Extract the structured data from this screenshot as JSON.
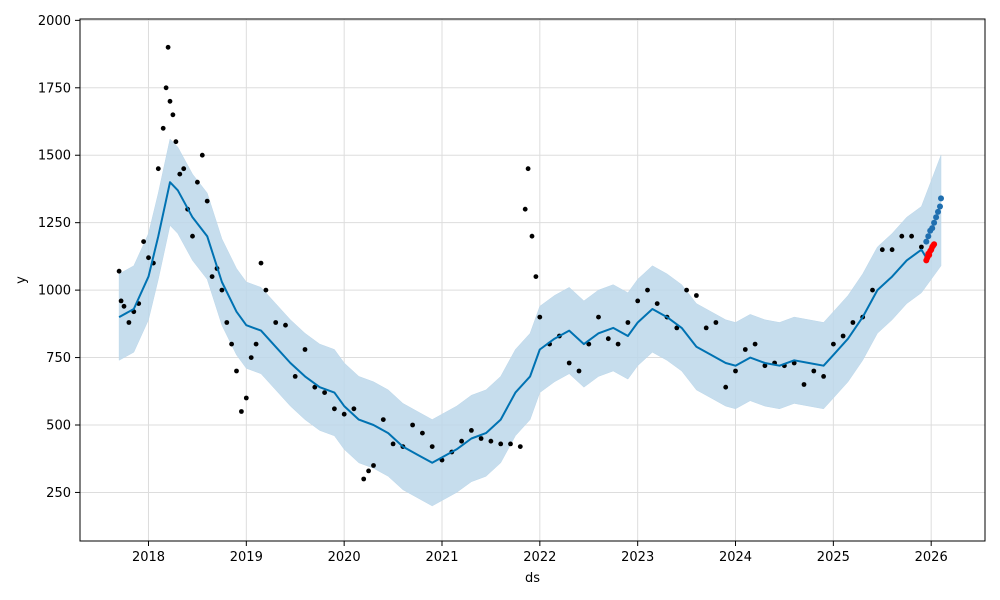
{
  "chart_data": {
    "type": "line",
    "title": "",
    "xlabel": "ds",
    "ylabel": "y",
    "xlim": [
      2017.3,
      2026.55
    ],
    "ylim": [
      70,
      2005
    ],
    "grid": true,
    "legend": "none",
    "x_ticks": [
      2018,
      2019,
      2020,
      2021,
      2022,
      2023,
      2024,
      2025,
      2026
    ],
    "x_tick_labels": [
      "2018",
      "2019",
      "2020",
      "2021",
      "2022",
      "2023",
      "2024",
      "2025",
      "2026"
    ],
    "y_ticks": [
      250,
      500,
      750,
      1000,
      1250,
      1500,
      1750,
      2000
    ],
    "y_tick_labels": [
      "250",
      "500",
      "750",
      "1000",
      "1250",
      "1500",
      "1750",
      "2000"
    ],
    "colors": {
      "forecast_line": "#0072B2",
      "uncertainty_band": "#bcd7ea",
      "observed_points": "#000000",
      "future_forecast_points": "#1f6fb0",
      "red_points": "#ff0000",
      "grid": "#dddddd"
    },
    "series": [
      {
        "kind": "forecast_yhat",
        "x": [
          2017.7,
          2017.85,
          2018.0,
          2018.1,
          2018.22,
          2018.3,
          2018.45,
          2018.6,
          2018.75,
          2018.9,
          2019.0,
          2019.15,
          2019.3,
          2019.45,
          2019.6,
          2019.75,
          2019.9,
          2020.0,
          2020.15,
          2020.3,
          2020.45,
          2020.6,
          2020.75,
          2020.9,
          2021.0,
          2021.15,
          2021.3,
          2021.45,
          2021.6,
          2021.75,
          2021.9,
          2022.0,
          2022.15,
          2022.3,
          2022.45,
          2022.6,
          2022.75,
          2022.9,
          2023.0,
          2023.15,
          2023.3,
          2023.45,
          2023.6,
          2023.75,
          2023.9,
          2024.0,
          2024.15,
          2024.3,
          2024.45,
          2024.6,
          2024.75,
          2024.9,
          2025.0,
          2025.15,
          2025.3,
          2025.45,
          2025.6,
          2025.75,
          2025.9,
          2025.95
        ],
        "y": [
          900,
          930,
          1050,
          1200,
          1400,
          1370,
          1270,
          1200,
          1030,
          920,
          870,
          850,
          790,
          730,
          680,
          640,
          620,
          570,
          520,
          500,
          470,
          420,
          390,
          360,
          380,
          410,
          450,
          470,
          520,
          620,
          680,
          780,
          820,
          850,
          800,
          840,
          860,
          830,
          880,
          930,
          900,
          860,
          790,
          760,
          730,
          720,
          750,
          730,
          720,
          740,
          730,
          720,
          760,
          820,
          900,
          1000,
          1050,
          1110,
          1150,
          1120
        ]
      },
      {
        "kind": "uncertainty_lower",
        "x": [
          2017.7,
          2017.85,
          2018.0,
          2018.1,
          2018.22,
          2018.3,
          2018.45,
          2018.6,
          2018.75,
          2018.9,
          2019.0,
          2019.15,
          2019.3,
          2019.45,
          2019.6,
          2019.75,
          2019.9,
          2020.0,
          2020.15,
          2020.3,
          2020.45,
          2020.6,
          2020.75,
          2020.9,
          2021.0,
          2021.15,
          2021.3,
          2021.45,
          2021.6,
          2021.75,
          2021.9,
          2022.0,
          2022.15,
          2022.3,
          2022.45,
          2022.6,
          2022.75,
          2022.9,
          2023.0,
          2023.15,
          2023.3,
          2023.45,
          2023.6,
          2023.75,
          2023.9,
          2024.0,
          2024.15,
          2024.3,
          2024.45,
          2024.6,
          2024.75,
          2024.9,
          2025.0,
          2025.15,
          2025.3,
          2025.45,
          2025.6,
          2025.75,
          2025.9,
          2026.1
        ],
        "y": [
          740,
          770,
          890,
          1040,
          1240,
          1210,
          1110,
          1040,
          870,
          760,
          710,
          690,
          630,
          570,
          520,
          480,
          460,
          410,
          360,
          340,
          310,
          260,
          230,
          200,
          220,
          250,
          290,
          310,
          360,
          460,
          520,
          620,
          660,
          690,
          640,
          680,
          700,
          670,
          720,
          770,
          740,
          700,
          630,
          600,
          570,
          560,
          590,
          570,
          560,
          580,
          570,
          560,
          600,
          660,
          740,
          840,
          890,
          950,
          990,
          1090
        ]
      },
      {
        "kind": "uncertainty_upper",
        "x": [
          2017.7,
          2017.85,
          2018.0,
          2018.1,
          2018.22,
          2018.3,
          2018.45,
          2018.6,
          2018.75,
          2018.9,
          2019.0,
          2019.15,
          2019.3,
          2019.45,
          2019.6,
          2019.75,
          2019.9,
          2020.0,
          2020.15,
          2020.3,
          2020.45,
          2020.6,
          2020.75,
          2020.9,
          2021.0,
          2021.15,
          2021.3,
          2021.45,
          2021.6,
          2021.75,
          2021.9,
          2022.0,
          2022.15,
          2022.3,
          2022.45,
          2022.6,
          2022.75,
          2022.9,
          2023.0,
          2023.15,
          2023.3,
          2023.45,
          2023.6,
          2023.75,
          2023.9,
          2024.0,
          2024.15,
          2024.3,
          2024.45,
          2024.6,
          2024.75,
          2024.9,
          2025.0,
          2025.15,
          2025.3,
          2025.45,
          2025.6,
          2025.75,
          2025.9,
          2026.1
        ],
        "y": [
          1060,
          1090,
          1210,
          1360,
          1560,
          1530,
          1430,
          1360,
          1190,
          1080,
          1030,
          1010,
          950,
          890,
          840,
          800,
          780,
          730,
          680,
          660,
          630,
          580,
          550,
          520,
          540,
          570,
          610,
          630,
          680,
          780,
          840,
          940,
          980,
          1010,
          960,
          1000,
          1020,
          990,
          1040,
          1090,
          1060,
          1020,
          950,
          920,
          890,
          880,
          910,
          890,
          880,
          900,
          890,
          880,
          920,
          980,
          1060,
          1160,
          1210,
          1270,
          1310,
          1500
        ]
      },
      {
        "kind": "observed",
        "x": [
          2017.7,
          2017.72,
          2017.75,
          2017.8,
          2017.85,
          2017.9,
          2017.95,
          2018.0,
          2018.05,
          2018.1,
          2018.15,
          2018.18,
          2018.2,
          2018.22,
          2018.25,
          2018.28,
          2018.32,
          2018.36,
          2018.4,
          2018.45,
          2018.5,
          2018.55,
          2018.6,
          2018.65,
          2018.7,
          2018.75,
          2018.8,
          2018.85,
          2018.9,
          2018.95,
          2019.0,
          2019.05,
          2019.1,
          2019.15,
          2019.2,
          2019.3,
          2019.4,
          2019.5,
          2019.6,
          2019.7,
          2019.8,
          2019.9,
          2020.0,
          2020.1,
          2020.2,
          2020.25,
          2020.3,
          2020.4,
          2020.5,
          2020.6,
          2020.7,
          2020.8,
          2020.9,
          2021.0,
          2021.1,
          2021.2,
          2021.3,
          2021.4,
          2021.5,
          2021.6,
          2021.7,
          2021.8,
          2021.85,
          2021.88,
          2021.92,
          2021.96,
          2022.0,
          2022.1,
          2022.2,
          2022.3,
          2022.4,
          2022.5,
          2022.6,
          2022.7,
          2022.8,
          2022.9,
          2023.0,
          2023.1,
          2023.2,
          2023.3,
          2023.4,
          2023.5,
          2023.6,
          2023.7,
          2023.8,
          2023.9,
          2024.0,
          2024.1,
          2024.2,
          2024.3,
          2024.4,
          2024.5,
          2024.6,
          2024.7,
          2024.8,
          2024.9,
          2025.0,
          2025.1,
          2025.2,
          2025.3,
          2025.4,
          2025.5,
          2025.6,
          2025.7,
          2025.8,
          2025.9
        ],
        "y": [
          1070,
          960,
          940,
          880,
          920,
          950,
          1180,
          1120,
          1100,
          1450,
          1600,
          1750,
          1900,
          1700,
          1650,
          1550,
          1430,
          1450,
          1300,
          1200,
          1400,
          1500,
          1330,
          1050,
          1080,
          1000,
          880,
          800,
          700,
          550,
          600,
          750,
          800,
          1100,
          1000,
          880,
          870,
          680,
          780,
          640,
          620,
          560,
          540,
          560,
          300,
          330,
          350,
          520,
          430,
          420,
          500,
          470,
          420,
          370,
          400,
          440,
          480,
          450,
          440,
          430,
          430,
          420,
          1300,
          1450,
          1200,
          1050,
          900,
          800,
          830,
          730,
          700,
          800,
          900,
          820,
          800,
          880,
          960,
          1000,
          950,
          900,
          860,
          1000,
          980,
          860,
          880,
          640,
          700,
          780,
          800,
          720,
          730,
          720,
          730,
          650,
          700,
          680,
          800,
          830,
          880,
          900,
          1000,
          1150,
          1150,
          1200,
          1200,
          1160
        ]
      },
      {
        "kind": "future_forecast",
        "x": [
          2025.95,
          2025.97,
          2025.99,
          2026.01,
          2026.03,
          2026.05,
          2026.07,
          2026.09,
          2026.1
        ],
        "y": [
          1180,
          1200,
          1220,
          1230,
          1250,
          1270,
          1290,
          1310,
          1340
        ]
      },
      {
        "kind": "red",
        "x": [
          2025.95,
          2025.96,
          2025.97,
          2025.98,
          2025.99,
          2026.0,
          2026.01,
          2026.02,
          2026.03
        ],
        "y": [
          1110,
          1120,
          1135,
          1130,
          1145,
          1150,
          1160,
          1165,
          1170
        ]
      }
    ]
  }
}
